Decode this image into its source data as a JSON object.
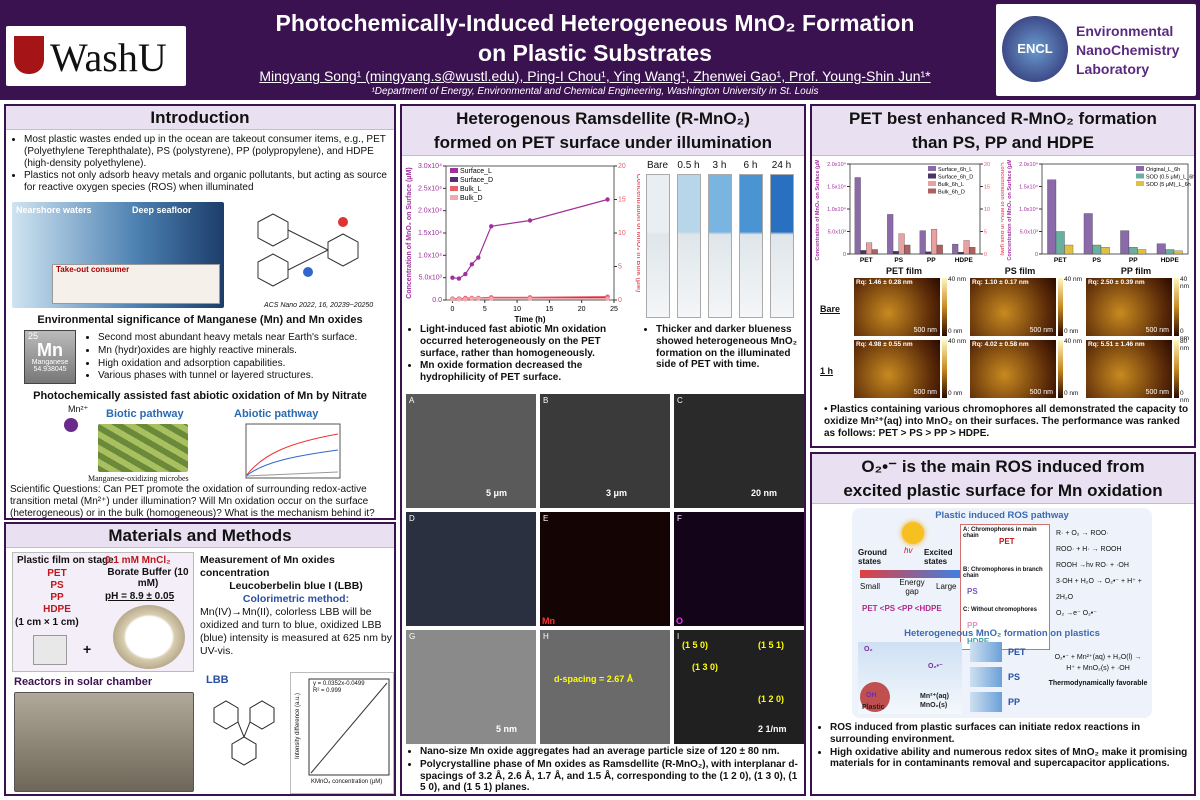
{
  "header": {
    "logo": "WashU",
    "title_line1": "Photochemically-Induced Heterogeneous MnO₂ Formation",
    "title_line2": "on Plastic Substrates",
    "authors": "Mingyang Song¹ (mingyang.s@wustl.edu), Ping-I Chou¹, Ying Wang¹, Zhenwei Gao¹, Prof. Young-Shin Jun¹*",
    "affiliation": "¹Department of Energy, Environmental and Chemical Engineering, Washington University in St. Louis",
    "lab_badge": "ENCL",
    "lab_name": [
      "Environmental",
      "NanoChemistry",
      "Laboratory"
    ]
  },
  "intro": {
    "title": "Introduction",
    "bullets": [
      "Most plastic wastes ended up in the ocean are takeout consumer items, e.g., PET (Polyethylene Terephthalate), PS (polystyrene), PP (polypropylene), and HDPE (high-density polyethylene).",
      "Plastics not only adsorb heavy metals and organic pollutants, but acting as source for reactive oxygen species (ROS) when illuminated"
    ],
    "figure_labels": [
      "Nearshore waters",
      "Deep seafloor",
      "Take-out consumer"
    ],
    "citation": "ACS Nano 2022, 16, 20239−20250",
    "mn_heading": "Environmental significance of Manganese (Mn) and Mn oxides",
    "mn_tile": {
      "number": "25",
      "symbol": "Mn",
      "name": "Manganese",
      "mass": "54.938045"
    },
    "mn_bullets": [
      "Second most abundant heavy metals near Earth's surface.",
      "Mn (hydr)oxides are highly reactive minerals.",
      "High oxidation and adsorption capabilities.",
      "Various phases with tunnel or layered structures."
    ],
    "nitrate_heading": "Photochemically assisted fast abiotic oxidation of Mn by Nitrate",
    "mn_ion": "Mn²⁺",
    "biotic": "Biotic pathway",
    "abiotic": "Abiotic pathway",
    "microbes": "Manganese-oxidizing microbes",
    "questions": "Scientific Questions: Can PET promote the oxidation of surrounding redox-active transition metal (Mn²⁺) under illumination? Will Mn oxidation occur on the surface (heterogeneous) or in the bulk (homogeneous)? What is the mechanism behind it?"
  },
  "methods": {
    "title": "Materials and Methods",
    "stage": "Plastic film on stage",
    "plastics": [
      "PET",
      "PS",
      "PP",
      "HDPE"
    ],
    "size": "(1 cm × 1 cm)",
    "mncl2": "0.1 mM MnCl₂",
    "buffer": "Borate Buffer (10 mM)",
    "ph": "pH = 8.9 ± 0.05",
    "reactors": "Reactors in solar chamber",
    "measurement": "Measurement of Mn oxides concentration",
    "lbb_full": "Leucoberbelin blue I (LBB)",
    "method_title": "Colorimetric method:",
    "method_text": "Mn(IV)→Mn(II), colorless LBB will be oxidized and turn to blue, oxidized LBB (blue) intensity is measured at 625 nm by UV-vis.",
    "lbb": "LBB",
    "fit": "y = 0.0352x-0.0499",
    "r2": "R² = 0.999",
    "cal_x": "KMnO₄ concentration (μM)",
    "cal_y": "Intensity difference (a.u.)"
  },
  "middle": {
    "title_line1": "Heterogenous Ramsdellite (R-MnO₂)",
    "title_line2": "formed on PET surface under illumination",
    "photo_labels": [
      "Bare",
      "0.5 h",
      "3 h",
      "6 h",
      "24 h"
    ],
    "bullets_left": [
      "Light-induced fast abiotic Mn oxidation occurred heterogeneously on the PET surface, rather than homogeneously.",
      "Mn oxide formation decreased the hydrophilicity of PET surface."
    ],
    "bullets_right": [
      "Thicker and darker blueness showed heterogeneous MnO₂ formation on the illuminated side of PET with time."
    ],
    "tem_letters": [
      "A",
      "B",
      "C",
      "D",
      "E",
      "F",
      "G",
      "H",
      "I"
    ],
    "tem_scales": [
      "5 μm",
      "3 μm",
      "20 nm",
      "5 nm",
      "2 1/nm"
    ],
    "tem_maps": [
      "Mn",
      "O"
    ],
    "d_spacing": "d-spacing = 2.67 Å",
    "planes": [
      "(1 5 0)",
      "(1 5 1)",
      "(1 3 0)",
      "(1 2 0)"
    ],
    "bullets_bottom": [
      "Nano-size Mn oxide aggregates had an average particle size of 120 ± 80 nm.",
      "Polycrystalline phase of Mn oxides as Ramsdellite (R-MnO₂), with interplanar d-spacings of 3.2 Å, 2.6 Å, 1.7 Å, and 1.5 Å, corresponding to the (1 2 0), (1 3 0), (1 5 0), and (1 5 1) planes."
    ]
  },
  "pet": {
    "title_line1": "PET best enhanced R-MnO₂ formation",
    "title_line2": "than PS, PP and HDPE",
    "films": [
      "PET film",
      "PS film",
      "PP film"
    ],
    "rows": [
      "Bare",
      "1 h"
    ],
    "rq": [
      "Rq: 1.46 ± 0.28 nm",
      "Rq: 1.10 ± 0.17 nm",
      "Rq: 2.50 ± 0.39 nm",
      "Rq: 4.98 ± 0.55 nm",
      "Rq: 4.02 ± 0.58 nm",
      "Rq: 5.51 ± 1.46 nm"
    ],
    "scale": "500 nm",
    "colorbar": [
      "40 nm",
      "0 nm",
      "40 nm",
      "0 nm",
      "40 nm",
      "0 nm",
      "40 nm",
      "0 nm",
      "40 nm",
      "0 nm",
      "80 nm",
      "0 nm"
    ],
    "bullet": "Plastics containing various chromophores all demonstrated the capacity to oxidize Mn²⁺(aq) into MnO₂ on their surfaces. The performance was ranked as follows: PET > PS > PP > HDPE."
  },
  "ros": {
    "title_line1": "O₂•⁻ is the main ROS induced from",
    "title_line2": "excited plastic surface for Mn oxidation",
    "pathway": "Plastic induced ROS pathway",
    "ground": "Ground states",
    "excited": "Excited states",
    "hv": "hv",
    "small": "Small",
    "gap": "Energy gap",
    "large": "Large",
    "ranking": "PET <PS <PP <HDPE",
    "chromophores": [
      "A: Chromophores in main chain",
      "B: Chromophores in branch chain",
      "C: Without chromophores"
    ],
    "polymers": [
      "PET",
      "PS",
      "PP",
      "HDPE"
    ],
    "reactions": [
      "R· + O₂ → ROO·",
      "ROO· + H· → ROOH",
      "ROOH →hv RO· + ·OH",
      "3·OH + H₂O → O₂•⁻ + H⁺ + 2H₂O",
      "O₂ →e⁻ O₂•⁻"
    ],
    "hetero": "Heterogeneous MnO₂ formation on plastics",
    "films": [
      "PET",
      "PS",
      "PP"
    ],
    "eq1": "O₂•⁻ + Mn²⁺(aq) + H₂O(l) →",
    "eq2": "H⁺ + MnO₂(s) + ·OH",
    "favorable": "Thermodynamically favorable",
    "scheme_labels": [
      "O₂",
      "O₂•⁻",
      "OH",
      "Plastic",
      "Mn²⁺(aq)",
      "MnO₂(s)"
    ],
    "bullets": [
      "ROS induced from plastic surfaces can initiate redox reactions in surrounding environment.",
      "High oxidative ability and numerous redox sites of MnO₂ make it promising materials for in contaminants removal and supercapacitor applications."
    ]
  },
  "chart_data": [
    {
      "type": "line",
      "x_label": "Time (h)",
      "y_label": "Concentration of MnO₂ on Surface (μM)",
      "y2_label": "Concentration of MnO₂ in Bulk (μM)",
      "x": [
        0,
        1,
        2,
        3,
        4,
        6,
        12,
        24
      ],
      "series": [
        {
          "name": "Surface_L",
          "color": "#a2309c",
          "values": [
            5000,
            4800,
            5800,
            8000,
            9500,
            16500,
            17800,
            22500
          ]
        },
        {
          "name": "Surface_D",
          "color": "#5b2a78",
          "values": [
            300,
            300,
            300,
            400,
            400,
            500,
            500,
            600
          ]
        },
        {
          "name": "Bulk_L",
          "color": "#e8606a",
          "axis": "y2",
          "values": [
            0.2,
            0.2,
            0.3,
            0.3,
            0.3,
            0.4,
            0.4,
            0.5
          ]
        },
        {
          "name": "Bulk_D",
          "color": "#f2a8ae",
          "axis": "y2",
          "values": [
            0.1,
            0.1,
            0.1,
            0.2,
            0.2,
            0.2,
            0.2,
            0.2
          ]
        }
      ],
      "xlim": [
        -1,
        25
      ],
      "xticks": [
        0,
        5,
        10,
        15,
        20,
        25
      ],
      "ylim": [
        0,
        30000
      ],
      "yticks": [
        {
          "value": 0,
          "label": "0.0"
        },
        {
          "value": 5000,
          "label": "5.0x10³"
        },
        {
          "value": 10000,
          "label": "1.0x10⁴"
        },
        {
          "value": 15000,
          "label": "1.5x10⁴"
        },
        {
          "value": 20000,
          "label": "2.0x10⁴"
        },
        {
          "value": 25000,
          "label": "2.5x10⁴"
        },
        {
          "value": 30000,
          "label": "3.0x10⁴"
        }
      ],
      "y2lim": [
        0,
        20
      ],
      "y2ticks": [
        0,
        5,
        10,
        15,
        20
      ],
      "legend": "upper left"
    },
    {
      "type": "bar",
      "y_label": "Concentration of MnO₂ on Surface (μM)",
      "y2_label": "Concentration of MnO₂ in Bulk (μM)",
      "categories": [
        "PET",
        "PS",
        "PP",
        "HDPE"
      ],
      "series": [
        {
          "name": "Surface_6h_L",
          "color": "#8a6aa8",
          "values": [
            17000,
            8800,
            5200,
            2200
          ]
        },
        {
          "name": "Surface_6h_D",
          "color": "#4a3560",
          "values": [
            800,
            600,
            500,
            400
          ]
        },
        {
          "name": "Bulk_6h_L",
          "color": "#e8a0a0",
          "axis": "y2",
          "values": [
            2.5,
            4.5,
            5.5,
            3
          ]
        },
        {
          "name": "Bulk_6h_D",
          "color": "#b06060",
          "axis": "y2",
          "values": [
            1,
            2,
            2,
            1.5
          ]
        }
      ],
      "ylim": [
        0,
        20000
      ],
      "yticks": [
        0,
        {
          "value": 5000,
          "label": "5.0x10³"
        },
        {
          "value": 10000,
          "label": "1.0x10⁴"
        },
        {
          "value": 15000,
          "label": "1.5x10⁴"
        },
        {
          "value": 20000,
          "label": "2.0x10⁴"
        }
      ],
      "y2lim": [
        0,
        20
      ],
      "y2ticks": [
        0,
        5,
        10,
        15,
        20
      ],
      "legend": "upper right"
    },
    {
      "type": "bar",
      "y_label": "Concentration of MnO₂ on Surface (μM)",
      "categories": [
        "PET",
        "PS",
        "PP",
        "HDPE"
      ],
      "series": [
        {
          "name": "Original_L_6h",
          "color": "#8a6aa8",
          "values": [
            16500,
            9000,
            5200,
            2300
          ]
        },
        {
          "name": "SOD (0.5 μM)_L_6h",
          "color": "#6ab0a0",
          "values": [
            5000,
            2000,
            1500,
            1000
          ]
        },
        {
          "name": "SOD (5 μM)_L_6h",
          "color": "#e0c040",
          "values": [
            2000,
            1500,
            1000,
            700
          ]
        }
      ],
      "ylim": [
        0,
        20000
      ],
      "yticks": [
        0,
        {
          "value": 5000,
          "label": "5.0x10³"
        },
        {
          "value": 10000,
          "label": "1.0x10⁴"
        },
        {
          "value": 15000,
          "label": "1.5x10⁴"
        },
        {
          "value": 20000,
          "label": "2.0x10⁴"
        }
      ],
      "legend": "upper right"
    }
  ]
}
